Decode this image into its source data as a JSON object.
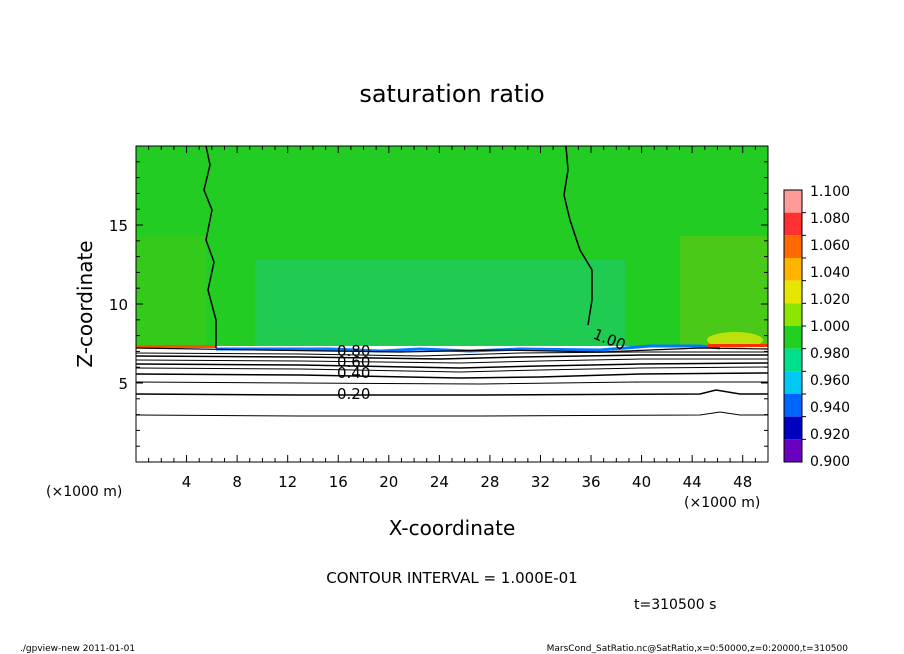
{
  "chart_data": {
    "type": "heatmap",
    "title": "saturation ratio",
    "xlabel": "X-coordinate",
    "ylabel": "Z-coordinate",
    "x_unit": "(×1000 m)",
    "z_unit": "(×1000 m)",
    "xlim": [
      0,
      50
    ],
    "ylim": [
      0,
      20
    ],
    "x_ticks": [
      "4",
      "8",
      "12",
      "16",
      "20",
      "24",
      "28",
      "32",
      "36",
      "40",
      "44",
      "48"
    ],
    "y_ticks": [
      "5",
      "10",
      "15"
    ],
    "colorbar": {
      "levels": [
        "1.100",
        "1.080",
        "1.060",
        "1.040",
        "1.020",
        "1.000",
        "0.980",
        "0.960",
        "0.940",
        "0.920",
        "0.900"
      ],
      "colors": [
        "#ff9a9a",
        "#ff3030",
        "#ff6a00",
        "#ffb400",
        "#e6e600",
        "#8ce600",
        "#22d022",
        "#00e08c",
        "#00c8f0",
        "#0064ff",
        "#0000c0",
        "#6a00c0"
      ]
    },
    "contour_labels": [
      "1.00",
      "0.80",
      "0.60",
      "0.40",
      "0.20"
    ],
    "contour_interval": "CONTOUR INTERVAL = 1.000E-01",
    "time": "t=310500 s"
  },
  "footer": {
    "left": "./gpview-new   2011-01-01",
    "right": "MarsCond_SatRatio.nc@SatRatio,x=0:50000,z=0:20000,t=310500"
  }
}
